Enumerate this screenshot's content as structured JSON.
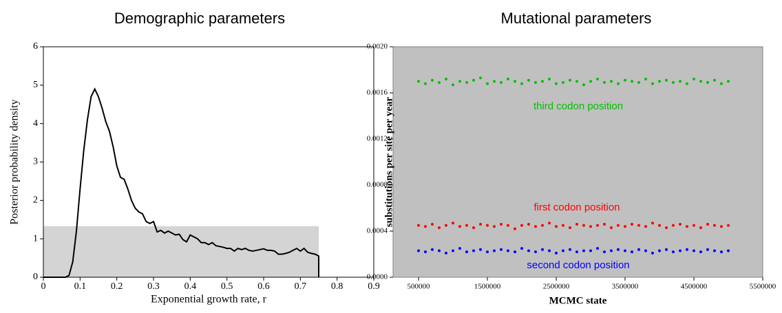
{
  "chart_data": [
    {
      "type": "line",
      "title": "Demographic parameters",
      "x_label": "Exponential growth rate, r",
      "y_label": "Posterior probability density",
      "x": [
        0,
        0.06,
        0.07,
        0.08,
        0.09,
        0.1,
        0.11,
        0.12,
        0.13,
        0.14,
        0.15,
        0.16,
        0.17,
        0.18,
        0.19,
        0.2,
        0.21,
        0.22,
        0.23,
        0.24,
        0.25,
        0.26,
        0.27,
        0.28,
        0.29,
        0.3,
        0.31,
        0.32,
        0.33,
        0.34,
        0.35,
        0.36,
        0.37,
        0.38,
        0.39,
        0.4,
        0.41,
        0.42,
        0.43,
        0.44,
        0.45,
        0.46,
        0.47,
        0.48,
        0.49,
        0.5,
        0.51,
        0.52,
        0.53,
        0.54,
        0.55,
        0.56,
        0.57,
        0.58,
        0.59,
        0.6,
        0.61,
        0.62,
        0.63,
        0.64,
        0.65,
        0.66,
        0.67,
        0.68,
        0.69,
        0.7,
        0.71,
        0.72,
        0.73,
        0.74,
        0.75,
        0.75
      ],
      "values": [
        0,
        0,
        0.05,
        0.4,
        1.2,
        2.3,
        3.3,
        4.1,
        4.7,
        4.9,
        4.7,
        4.4,
        4.05,
        3.8,
        3.4,
        2.9,
        2.6,
        2.55,
        2.3,
        2.0,
        1.8,
        1.7,
        1.65,
        1.45,
        1.4,
        1.45,
        1.18,
        1.22,
        1.15,
        1.2,
        1.15,
        1.1,
        1.12,
        0.98,
        0.92,
        1.1,
        1.05,
        1.0,
        0.9,
        0.9,
        0.85,
        0.9,
        0.82,
        0.8,
        0.78,
        0.75,
        0.75,
        0.68,
        0.75,
        0.72,
        0.75,
        0.7,
        0.68,
        0.7,
        0.72,
        0.74,
        0.7,
        0.7,
        0.68,
        0.6,
        0.6,
        0.62,
        0.65,
        0.7,
        0.75,
        0.68,
        0.75,
        0.65,
        0.62,
        0.6,
        0.55,
        0
      ],
      "color": "#000000",
      "shaded_region": {
        "x": [
          0,
          0.75
        ],
        "y": 1.33,
        "color": "#d4d4d4"
      },
      "xlim": [
        0,
        0.9
      ],
      "xticks": [
        0,
        0.1,
        0.2,
        0.3,
        0.4,
        0.5,
        0.6,
        0.7,
        0.8,
        0.9
      ],
      "ylim": [
        0,
        6
      ],
      "yticks": [
        0,
        1,
        2,
        3,
        4,
        5,
        6
      ]
    },
    {
      "type": "scatter",
      "title": "Mutational parameters",
      "x_label": "MCMC state",
      "y_label": "substitutions per site per year",
      "background": "#c0c0c0",
      "x": [
        500000,
        600000,
        700000,
        800000,
        900000,
        1000000,
        1100000,
        1200000,
        1300000,
        1400000,
        1500000,
        1600000,
        1700000,
        1800000,
        1900000,
        2000000,
        2100000,
        2200000,
        2300000,
        2400000,
        2500000,
        2600000,
        2700000,
        2800000,
        2900000,
        3000000,
        3100000,
        3200000,
        3300000,
        3400000,
        3500000,
        3600000,
        3700000,
        3800000,
        3900000,
        4000000,
        4100000,
        4200000,
        4300000,
        4400000,
        4500000,
        4600000,
        4700000,
        4800000,
        4900000,
        5000000
      ],
      "series": [
        {
          "name": "third codon position",
          "color": "#00c000",
          "values": [
            0.0017,
            0.00168,
            0.00171,
            0.00169,
            0.00172,
            0.00167,
            0.0017,
            0.00169,
            0.00171,
            0.00173,
            0.00168,
            0.0017,
            0.00169,
            0.00172,
            0.0017,
            0.00168,
            0.00171,
            0.00169,
            0.0017,
            0.00172,
            0.00168,
            0.00169,
            0.00171,
            0.0017,
            0.00167,
            0.0017,
            0.00172,
            0.00169,
            0.0017,
            0.00168,
            0.00171,
            0.0017,
            0.00169,
            0.00172,
            0.00168,
            0.0017,
            0.00171,
            0.00169,
            0.0017,
            0.00168,
            0.00172,
            0.0017,
            0.00169,
            0.00171,
            0.00168,
            0.0017
          ]
        },
        {
          "name": "first codon position",
          "color": "#ff0000",
          "values": [
            0.00045,
            0.00044,
            0.00046,
            0.00043,
            0.00045,
            0.00047,
            0.00044,
            0.00045,
            0.00043,
            0.00046,
            0.00045,
            0.00044,
            0.00046,
            0.00045,
            0.00042,
            0.00045,
            0.00046,
            0.00044,
            0.00045,
            0.00047,
            0.00044,
            0.00045,
            0.00043,
            0.00046,
            0.00045,
            0.00044,
            0.00045,
            0.00046,
            0.00043,
            0.00045,
            0.00044,
            0.00046,
            0.00045,
            0.00044,
            0.00047,
            0.00045,
            0.00043,
            0.00045,
            0.00046,
            0.00044,
            0.00045,
            0.00043,
            0.00046,
            0.00045,
            0.00044,
            0.00045
          ]
        },
        {
          "name": "second codon position",
          "color": "#0000ff",
          "values": [
            0.00023,
            0.00022,
            0.00024,
            0.00023,
            0.00021,
            0.00023,
            0.00025,
            0.00022,
            0.00023,
            0.00024,
            0.00022,
            0.00023,
            0.00024,
            0.00023,
            0.00022,
            0.00025,
            0.00023,
            0.00022,
            0.00024,
            0.00023,
            0.00021,
            0.00023,
            0.00024,
            0.00022,
            0.00023,
            0.00023,
            0.00025,
            0.00022,
            0.00023,
            0.00024,
            0.00023,
            0.00022,
            0.00024,
            0.00023,
            0.00021,
            0.00023,
            0.00024,
            0.00022,
            0.00023,
            0.00024,
            0.00023,
            0.00022,
            0.00024,
            0.00023,
            0.00022,
            0.00023
          ]
        }
      ],
      "xlim": [
        130000,
        5500000
      ],
      "xticks": [
        500000,
        1500000,
        2500000,
        3500000,
        4500000,
        5500000
      ],
      "ylim": [
        0,
        0.002
      ],
      "yticks": [
        {
          "value": 0,
          "label": "0.0000"
        },
        {
          "value": 0.0004,
          "label": "0.0004"
        },
        {
          "value": 0.0008,
          "label": "0.0008"
        },
        {
          "value": 0.0012,
          "label": "0.0012"
        },
        {
          "value": 0.0016,
          "label": "0.0016"
        },
        {
          "value": 0.002,
          "label": "0.0020"
        }
      ]
    }
  ]
}
